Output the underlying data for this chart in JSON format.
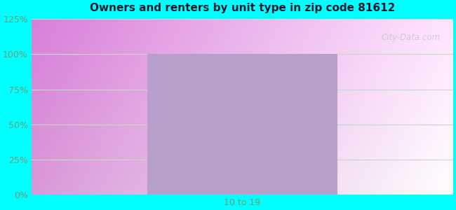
{
  "title": "Owners and renters by unit type in zip code 81612",
  "categories": [
    "10 to 19"
  ],
  "bar_value": 100,
  "bar_color": "#b8a0cc",
  "ylim": [
    0,
    125
  ],
  "yticks": [
    0,
    25,
    50,
    75,
    100,
    125
  ],
  "yticklabels": [
    "0%",
    "25%",
    "50%",
    "75%",
    "100%",
    "125%"
  ],
  "bg_outer": "#00ffff",
  "grid_color": "#c8d8c8",
  "title_color": "#1a1a2e",
  "tick_color": "#779977",
  "watermark": "City-Data.com",
  "watermark_color": "#c8c8c8",
  "bar_xleft": 0.28,
  "bar_xright": 0.75,
  "figwidth": 6.5,
  "figheight": 3.0
}
